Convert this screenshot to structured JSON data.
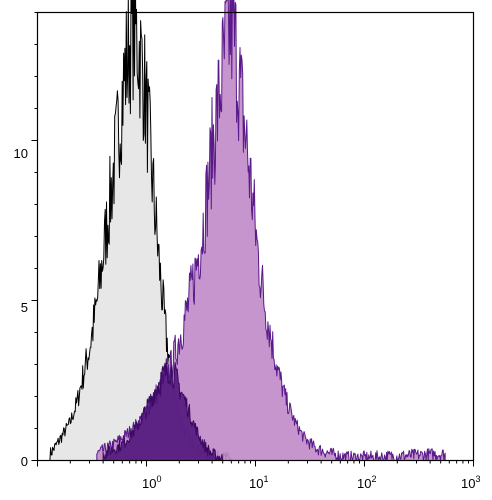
{
  "chart_data": {
    "type": "area",
    "title": "",
    "xlabel": "",
    "ylabel": "",
    "x_scale": "log",
    "xlim": [
      0.1,
      1000
    ],
    "ylim": [
      0,
      14
    ],
    "grid": false,
    "x_ticks": [
      {
        "value": 1,
        "base": "10",
        "exp": "0"
      },
      {
        "value": 10,
        "base": "10",
        "exp": "1"
      },
      {
        "value": 100,
        "base": "10",
        "exp": "2"
      },
      {
        "value": 1000,
        "base": "10",
        "exp": "3"
      }
    ],
    "y_ticks": [
      {
        "value": 0,
        "label": "0"
      },
      {
        "value": 5,
        "label": "5"
      },
      {
        "value": 10,
        "label": "10"
      }
    ],
    "series": [
      {
        "style": "filled-light-gray",
        "fill": "#e4e4e4",
        "stroke": "#000000",
        "x": [
          0.13,
          0.15,
          0.17,
          0.2,
          0.23,
          0.26,
          0.3,
          0.34,
          0.38,
          0.42,
          0.47,
          0.52,
          0.58,
          0.64,
          0.7,
          0.76,
          0.82,
          0.88,
          0.95,
          1.03,
          1.12,
          1.22,
          1.35,
          1.5,
          1.7,
          1.9,
          2.2,
          2.5,
          3.0,
          4.0,
          6.0
        ],
        "y": [
          0.2,
          0.5,
          0.8,
          1.2,
          1.8,
          2.6,
          3.5,
          4.6,
          5.8,
          7.0,
          8.3,
          9.6,
          11.0,
          12.2,
          13.0,
          13.6,
          13.2,
          12.6,
          11.8,
          10.6,
          9.0,
          7.4,
          5.6,
          4.0,
          2.6,
          1.6,
          1.0,
          0.6,
          0.3,
          0.1,
          0.05
        ]
      },
      {
        "style": "filled-purple",
        "fill": "#c08ac8",
        "stroke": "#5a1a8a",
        "x": [
          0.35,
          0.5,
          0.7,
          0.9,
          1.1,
          1.4,
          1.7,
          2.0,
          2.4,
          2.8,
          3.2,
          3.6,
          4.0,
          4.5,
          5.0,
          5.5,
          6.0,
          6.5,
          7.0,
          7.7,
          8.5,
          9.5,
          10.5,
          12,
          14,
          16,
          19,
          23,
          28,
          35,
          50,
          70,
          120,
          450,
          550
        ],
        "y": [
          0.2,
          0.5,
          0.9,
          1.3,
          1.8,
          2.4,
          3.0,
          3.8,
          4.8,
          5.9,
          7.0,
          8.3,
          9.7,
          11.0,
          12.2,
          13.2,
          13.6,
          13.0,
          12.0,
          10.8,
          9.5,
          8.0,
          6.5,
          5.0,
          3.8,
          2.8,
          1.9,
          1.2,
          0.7,
          0.4,
          0.2,
          0.1,
          0.1,
          0.2,
          0.2
        ]
      },
      {
        "style": "filled-dark-purple",
        "fill": "#4b0f78",
        "stroke": "#3a0a60",
        "x": [
          0.4,
          0.6,
          0.8,
          1.0,
          1.2,
          1.4,
          1.6,
          1.8,
          2.0,
          2.3,
          2.6,
          3.0,
          3.5,
          4.0,
          5.0
        ],
        "y": [
          0.2,
          0.5,
          1.0,
          1.6,
          2.2,
          2.6,
          2.9,
          2.7,
          2.3,
          1.8,
          1.3,
          0.8,
          0.4,
          0.2,
          0.05
        ]
      }
    ]
  }
}
